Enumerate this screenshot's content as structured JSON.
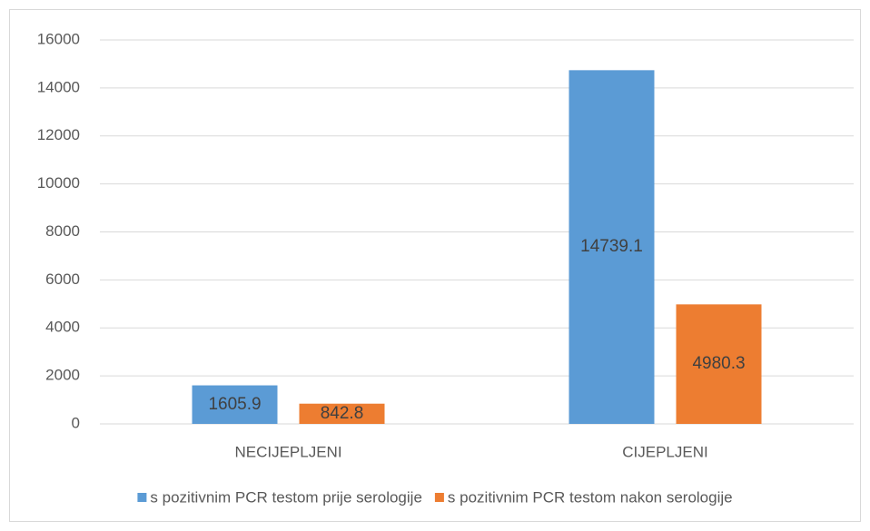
{
  "chart_data": {
    "type": "bar",
    "categories": [
      "NECIJEPLJENI",
      "CIJEPLJENI"
    ],
    "series": [
      {
        "name": "s pozitivnim PCR testom prije serologije",
        "color": "#5b9bd5",
        "values": [
          1605.9,
          14739.1
        ]
      },
      {
        "name": "s pozitivnim PCR testom nakon serologije",
        "color": "#ed7d31",
        "values": [
          842.8,
          4980.3
        ]
      }
    ],
    "ylim": [
      0,
      16000
    ],
    "yticks": [
      0,
      2000,
      4000,
      6000,
      8000,
      10000,
      12000,
      14000,
      16000
    ],
    "grid": true,
    "legend": "bottom"
  }
}
